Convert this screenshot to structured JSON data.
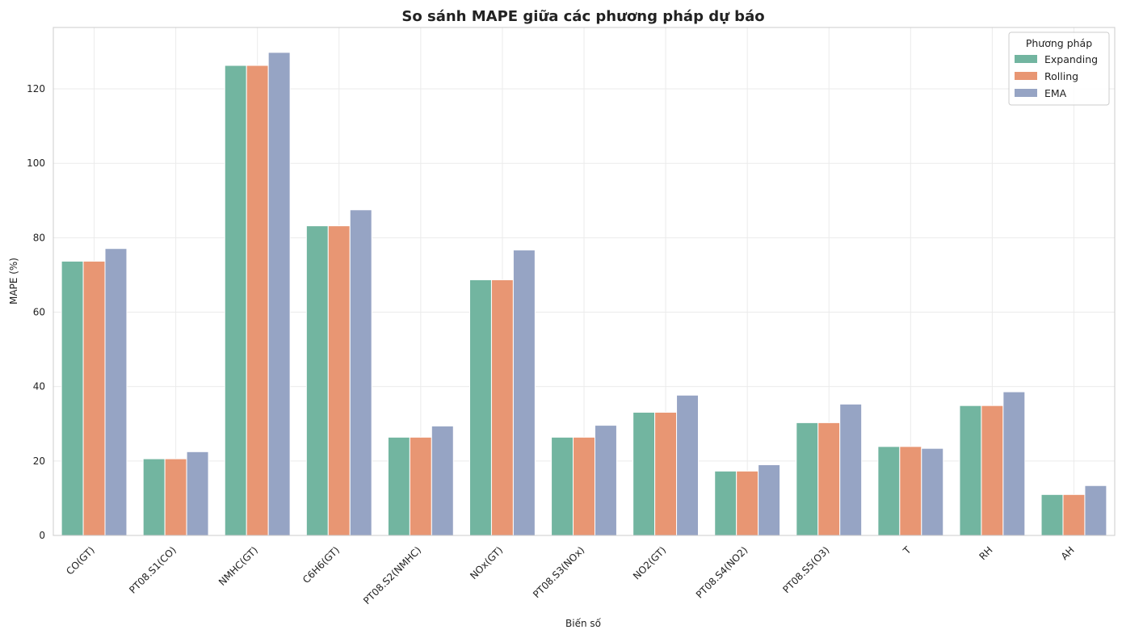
{
  "chart_data": {
    "type": "bar",
    "title": "So sánh MAPE giữa các phương pháp dự báo",
    "xlabel": "Biến số",
    "ylabel": "MAPE (%)",
    "ylim": [
      0,
      136.5
    ],
    "yticks": [
      0,
      20,
      40,
      60,
      80,
      100,
      120
    ],
    "grid": true,
    "legend_position": "top-right",
    "legend_title": "Phương pháp",
    "categories": [
      "CO(GT)",
      "PT08.S1(CO)",
      "NMHC(GT)",
      "C6H6(GT)",
      "PT08.S2(NMHC)",
      "NOx(GT)",
      "PT08.S3(NOx)",
      "NO2(GT)",
      "PT08.S4(NO2)",
      "PT08.S5(O3)",
      "T",
      "RH",
      "AH"
    ],
    "series": [
      {
        "name": "Expanding",
        "color": "#72b5a0",
        "values": [
          73.7,
          20.6,
          126.3,
          83.2,
          26.4,
          68.7,
          26.4,
          33.1,
          17.3,
          30.3,
          23.9,
          34.9,
          11.0
        ]
      },
      {
        "name": "Rolling",
        "color": "#e89673",
        "values": [
          73.7,
          20.6,
          126.3,
          83.2,
          26.4,
          68.7,
          26.4,
          33.1,
          17.3,
          30.3,
          23.9,
          34.9,
          11.0
        ]
      },
      {
        "name": "EMA",
        "color": "#96a4c4",
        "values": [
          77.1,
          22.5,
          129.8,
          87.5,
          29.4,
          76.7,
          29.6,
          37.7,
          19.0,
          35.3,
          23.4,
          38.6,
          13.4
        ]
      }
    ]
  }
}
